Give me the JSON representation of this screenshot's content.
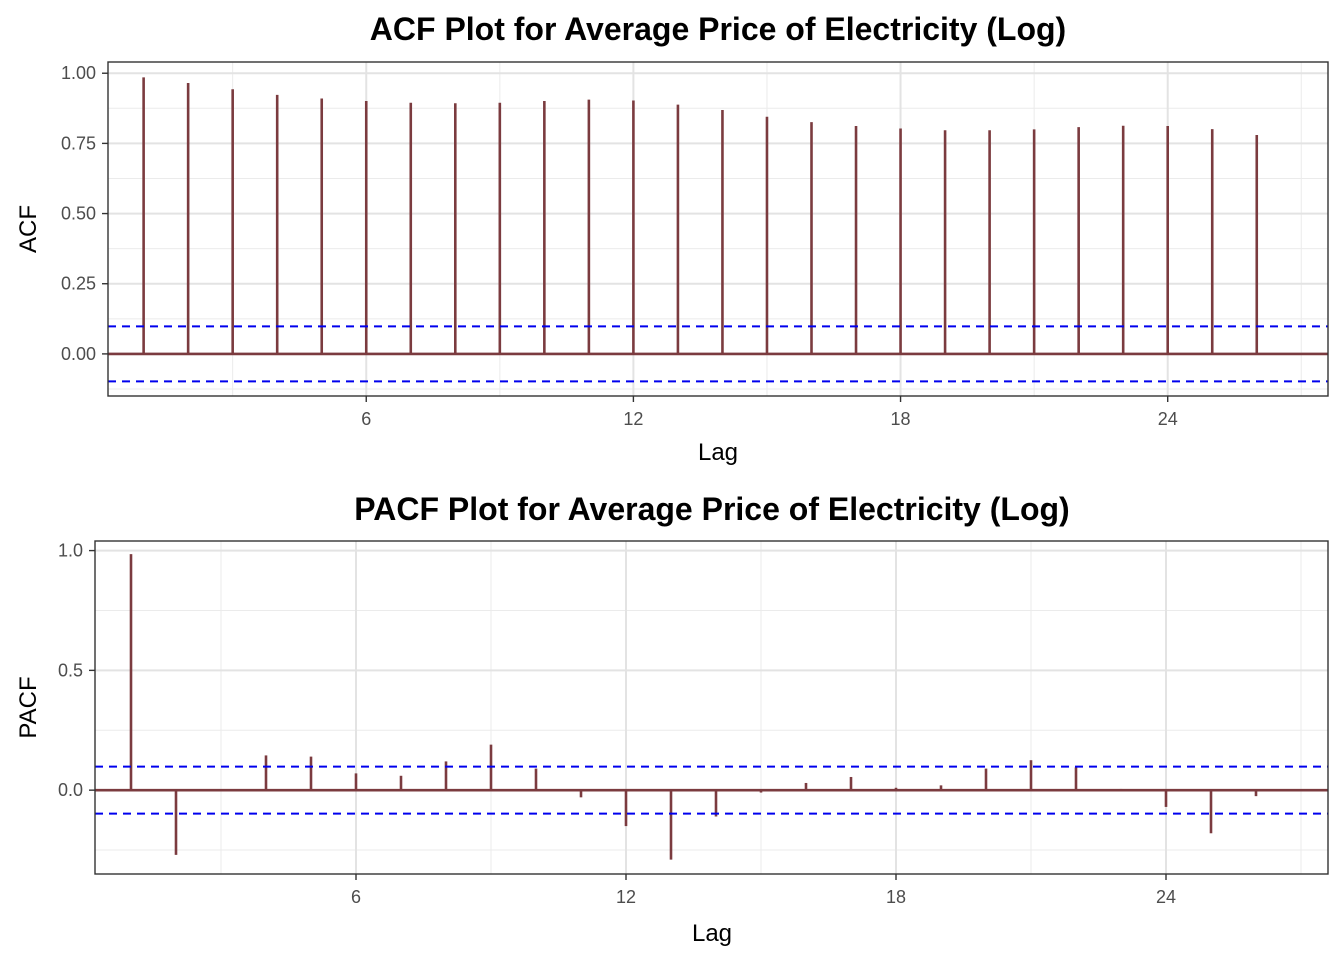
{
  "chart_data": [
    {
      "type": "bar",
      "title": "ACF Plot for Average Price of Electricity (Log)",
      "xlabel": "Lag",
      "ylabel": "ACF",
      "xlim": [
        0.2,
        27.6
      ],
      "ylim": [
        -0.15,
        1.04
      ],
      "x_ticks": [
        6,
        12,
        18,
        24
      ],
      "y_ticks": [
        0,
        0.25,
        0.5,
        0.75,
        1.0
      ],
      "y_tick_labels": [
        "0.00",
        "0.25",
        "0.50",
        "0.75",
        "1.00"
      ],
      "grid": true,
      "confidence_bound": 0.098,
      "lags": [
        1,
        2,
        3,
        4,
        5,
        6,
        7,
        8,
        9,
        10,
        11,
        12,
        13,
        14,
        15,
        16,
        17,
        18,
        19,
        20,
        21,
        22,
        23,
        24,
        25,
        26
      ],
      "values": [
        0.985,
        0.965,
        0.943,
        0.923,
        0.91,
        0.901,
        0.895,
        0.893,
        0.895,
        0.901,
        0.906,
        0.903,
        0.888,
        0.869,
        0.845,
        0.826,
        0.812,
        0.803,
        0.797,
        0.797,
        0.8,
        0.808,
        0.813,
        0.812,
        0.801,
        0.78
      ],
      "bar_color": "#7B3B3F",
      "bound_color": "#0000EE"
    },
    {
      "type": "bar",
      "title": "PACF Plot for Average Price of Electricity (Log)",
      "xlabel": "Lag",
      "ylabel": "PACF",
      "xlim": [
        0.2,
        27.6
      ],
      "ylim": [
        -0.35,
        1.04
      ],
      "x_ticks": [
        6,
        12,
        18,
        24
      ],
      "y_ticks": [
        0,
        0.5,
        1.0
      ],
      "y_tick_labels": [
        "0.0",
        "0.5",
        "1.0"
      ],
      "grid": true,
      "confidence_bound": 0.098,
      "lags": [
        1,
        2,
        3,
        4,
        5,
        6,
        7,
        8,
        9,
        10,
        11,
        12,
        13,
        14,
        15,
        16,
        17,
        18,
        19,
        20,
        21,
        22,
        23,
        24,
        25,
        26
      ],
      "values": [
        0.985,
        -0.27,
        0.0,
        0.145,
        0.14,
        0.07,
        0.06,
        0.12,
        0.19,
        0.09,
        -0.03,
        -0.15,
        -0.29,
        -0.11,
        -0.01,
        0.03,
        0.055,
        0.01,
        0.02,
        0.09,
        0.125,
        0.095,
        0.005,
        -0.07,
        -0.18,
        -0.025
      ],
      "bar_color": "#7B3B3F",
      "bound_color": "#0000EE"
    }
  ]
}
